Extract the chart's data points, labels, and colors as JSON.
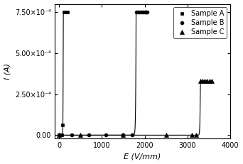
{
  "title": "",
  "xlabel": "E (V/mm)",
  "ylabel": "I (A)",
  "xlim": [
    -100,
    4000
  ],
  "ylim": [
    -2e-05,
    0.0008
  ],
  "xticks": [
    0,
    1000,
    2000,
    3000,
    4000
  ],
  "ytick_vals": [
    0.0,
    0.00025,
    0.0005,
    0.00075
  ],
  "ytick_labels": [
    "0.00",
    "2.50×10⁻⁴",
    "5.00×10⁻⁴",
    "7.50×10⁻⁴"
  ],
  "background_color": "#ffffff",
  "sample_A": {
    "E_thresh": 100,
    "E_max": 200,
    "alpha": 25,
    "I_scale": 0.00075,
    "color": "#000000",
    "marker": "s",
    "marker_E": [
      0,
      30,
      60,
      90,
      110,
      130,
      160,
      185,
      200
    ],
    "label": "Sample A"
  },
  "sample_B": {
    "E_thresh": 1800,
    "E_max": 2060,
    "alpha": 30,
    "I_scale": 0.00075,
    "color": "#000000",
    "marker": "o",
    "marker_E": [
      0,
      300,
      700,
      1100,
      1500,
      1700,
      1800,
      1850,
      1900,
      1950,
      2000,
      2030,
      2060
    ],
    "label": "Sample B"
  },
  "sample_C": {
    "E_thresh": 3300,
    "E_max": 3560,
    "alpha": 35,
    "I_scale": 0.00033,
    "color": "#000000",
    "marker": "^",
    "marker_E": [
      0,
      500,
      1500,
      2500,
      3100,
      3200,
      3300,
      3350,
      3400,
      3450,
      3510,
      3560
    ],
    "label": "Sample C"
  },
  "legend_fontsize": 7,
  "axis_fontsize": 8,
  "tick_fontsize": 7
}
